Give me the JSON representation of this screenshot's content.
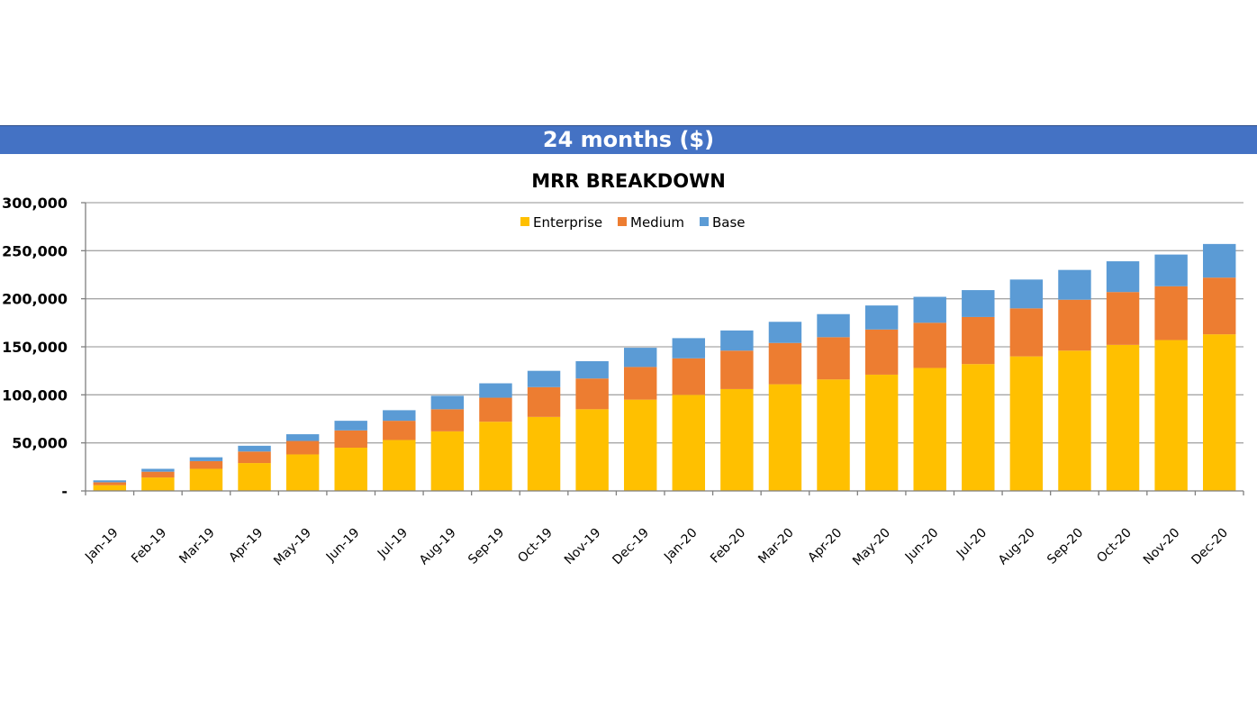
{
  "banner": {
    "title": "24 months ($)"
  },
  "chart_data": {
    "type": "bar",
    "stacked": true,
    "title": "MRR BREAKDOWN",
    "xlabel": "",
    "ylabel": "",
    "ylim": [
      0,
      300000
    ],
    "yticks": [
      0,
      50000,
      100000,
      150000,
      200000,
      250000,
      300000
    ],
    "ytick_labels": [
      "-",
      "50,000",
      "100,000",
      "150,000",
      "200,000",
      "250,000",
      "300,000"
    ],
    "grid": true,
    "legend_position": "top-center",
    "categories": [
      "Jan-19",
      "Feb-19",
      "Mar-19",
      "Apr-19",
      "May-19",
      "Jun-19",
      "Jul-19",
      "Aug-19",
      "Sep-19",
      "Oct-19",
      "Nov-19",
      "Dec-19",
      "Jan-20",
      "Feb-20",
      "Mar-20",
      "Apr-20",
      "May-20",
      "Jun-20",
      "Jul-20",
      "Aug-20",
      "Sep-20",
      "Oct-20",
      "Nov-20",
      "Dec-20"
    ],
    "series": [
      {
        "name": "Enterprise",
        "color": "#ffc000",
        "values": [
          6000,
          14000,
          23000,
          29000,
          38000,
          45000,
          53000,
          62000,
          72000,
          77000,
          85000,
          95000,
          100000,
          106000,
          111000,
          116000,
          121000,
          128000,
          132000,
          140000,
          146000,
          152000,
          157000,
          163000
        ]
      },
      {
        "name": "Medium",
        "color": "#ed7d31",
        "values": [
          3000,
          6000,
          8000,
          12000,
          14000,
          18000,
          20000,
          23000,
          25000,
          31000,
          32000,
          34000,
          38000,
          40000,
          43000,
          44000,
          47000,
          47000,
          49000,
          50000,
          53000,
          55000,
          56000,
          59000
        ]
      },
      {
        "name": "Base",
        "color": "#5b9bd5",
        "values": [
          2000,
          3000,
          4000,
          6000,
          7000,
          10000,
          11000,
          14000,
          15000,
          17000,
          18000,
          20000,
          21000,
          21000,
          22000,
          24000,
          25000,
          27000,
          28000,
          30000,
          31000,
          32000,
          33000,
          35000
        ]
      }
    ]
  }
}
